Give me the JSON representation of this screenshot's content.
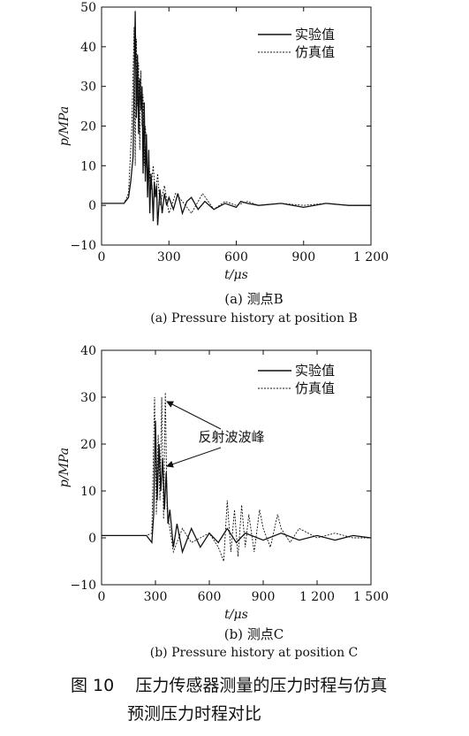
{
  "figure_caption": {
    "number": "图 10",
    "line1": "压力传感器测量的压力时程与仿真",
    "line2": "预测压力时程对比"
  },
  "chart_data": [
    {
      "type": "line",
      "subcaption_cn": "(a) 测点B",
      "subcaption_en": "(a) Pressure history at position B",
      "xlabel": "t/μs",
      "ylabel": "p/MPa",
      "xlim": [
        0,
        1200
      ],
      "ylim": [
        -10,
        50
      ],
      "xticks": [
        0,
        300,
        600,
        900,
        1200
      ],
      "xtick_labels": [
        "0",
        "300",
        "600",
        "900",
        "1 200"
      ],
      "yticks": [
        -10,
        0,
        10,
        20,
        30,
        40,
        50
      ],
      "ytick_labels": [
        "−10",
        "0",
        "10",
        "20",
        "30",
        "40",
        "50"
      ],
      "legend_position": "top-right",
      "series": [
        {
          "name": "实验值",
          "style": "solid",
          "x": [
            0,
            100,
            120,
            130,
            140,
            145,
            150,
            155,
            160,
            165,
            170,
            175,
            180,
            185,
            190,
            195,
            200,
            205,
            210,
            215,
            220,
            225,
            230,
            235,
            240,
            245,
            250,
            260,
            270,
            280,
            290,
            300,
            320,
            340,
            360,
            380,
            400,
            430,
            460,
            500,
            550,
            600,
            620,
            650,
            700,
            800,
            900,
            1000,
            1100,
            1200
          ],
          "y": [
            0.5,
            0.5,
            2,
            6,
            12,
            30,
            49,
            22,
            38,
            18,
            32,
            24,
            30,
            8,
            26,
            6,
            18,
            2,
            14,
            -2,
            8,
            4,
            -4,
            6,
            2,
            5,
            -5,
            4,
            -2,
            3,
            0,
            2,
            -1,
            3,
            -2,
            1,
            2,
            -1,
            1,
            -1,
            0.5,
            -0.5,
            1,
            0.5,
            0,
            0.5,
            -0.5,
            0.5,
            0,
            0
          ]
        },
        {
          "name": "仿真值",
          "style": "dashed",
          "x": [
            0,
            100,
            120,
            135,
            145,
            150,
            155,
            160,
            165,
            170,
            175,
            180,
            185,
            190,
            195,
            200,
            205,
            210,
            220,
            230,
            240,
            250,
            260,
            280,
            300,
            330,
            360,
            400,
            450,
            500,
            550,
            600,
            650,
            700,
            800,
            900,
            1000,
            1100,
            1200
          ],
          "y": [
            0.5,
            0.5,
            3,
            20,
            45,
            10,
            42,
            25,
            36,
            14,
            34,
            20,
            28,
            10,
            20,
            15,
            6,
            12,
            4,
            10,
            2,
            8,
            0,
            5,
            -2,
            3,
            1,
            -2,
            3,
            -1,
            1,
            0,
            1,
            0,
            0.5,
            0,
            0.5,
            0,
            0
          ]
        }
      ]
    },
    {
      "type": "line",
      "subcaption_cn": "(b) 测点C",
      "subcaption_en": "(b) Pressure history at position C",
      "xlabel": "t/μs",
      "ylabel": "p/MPa",
      "xlim": [
        0,
        1500
      ],
      "ylim": [
        -10,
        40
      ],
      "xticks": [
        0,
        300,
        600,
        900,
        1200,
        1500
      ],
      "xtick_labels": [
        "0",
        "300",
        "600",
        "900",
        "1 200",
        "1 500"
      ],
      "yticks": [
        -10,
        0,
        10,
        20,
        30,
        40
      ],
      "ytick_labels": [
        "−10",
        "0",
        "10",
        "20",
        "30",
        "40"
      ],
      "legend_position": "top-right",
      "annotation": "反射波波峰",
      "series": [
        {
          "name": "实验值",
          "style": "solid",
          "x": [
            0,
            250,
            280,
            290,
            300,
            310,
            320,
            330,
            340,
            350,
            360,
            370,
            380,
            400,
            420,
            450,
            500,
            550,
            600,
            650,
            700,
            750,
            800,
            900,
            1000,
            1100,
            1200,
            1300,
            1400,
            1500
          ],
          "y": [
            0.5,
            0.5,
            -1,
            5,
            25,
            8,
            20,
            10,
            17,
            6,
            14,
            3,
            6,
            -2,
            3,
            -3,
            2,
            -2,
            1,
            -1,
            2,
            -1,
            1,
            -0.5,
            1,
            -0.5,
            0.5,
            -0.5,
            0.5,
            0
          ]
        },
        {
          "name": "仿真值",
          "style": "dashed",
          "x": [
            0,
            250,
            280,
            295,
            305,
            315,
            325,
            335,
            345,
            355,
            365,
            380,
            400,
            450,
            500,
            600,
            650,
            680,
            700,
            720,
            740,
            760,
            780,
            800,
            820,
            850,
            880,
            900,
            940,
            980,
            1000,
            1050,
            1100,
            1200,
            1300,
            1400,
            1500
          ],
          "y": [
            0.5,
            0.5,
            1,
            30,
            5,
            22,
            8,
            30,
            4,
            31,
            6,
            2,
            -3,
            2,
            -1,
            1,
            -2,
            -5,
            8,
            -3,
            6,
            -4,
            7,
            -2,
            5,
            -3,
            6,
            2,
            -2,
            5,
            2,
            -1,
            2,
            0,
            1,
            0,
            0
          ]
        }
      ]
    }
  ]
}
